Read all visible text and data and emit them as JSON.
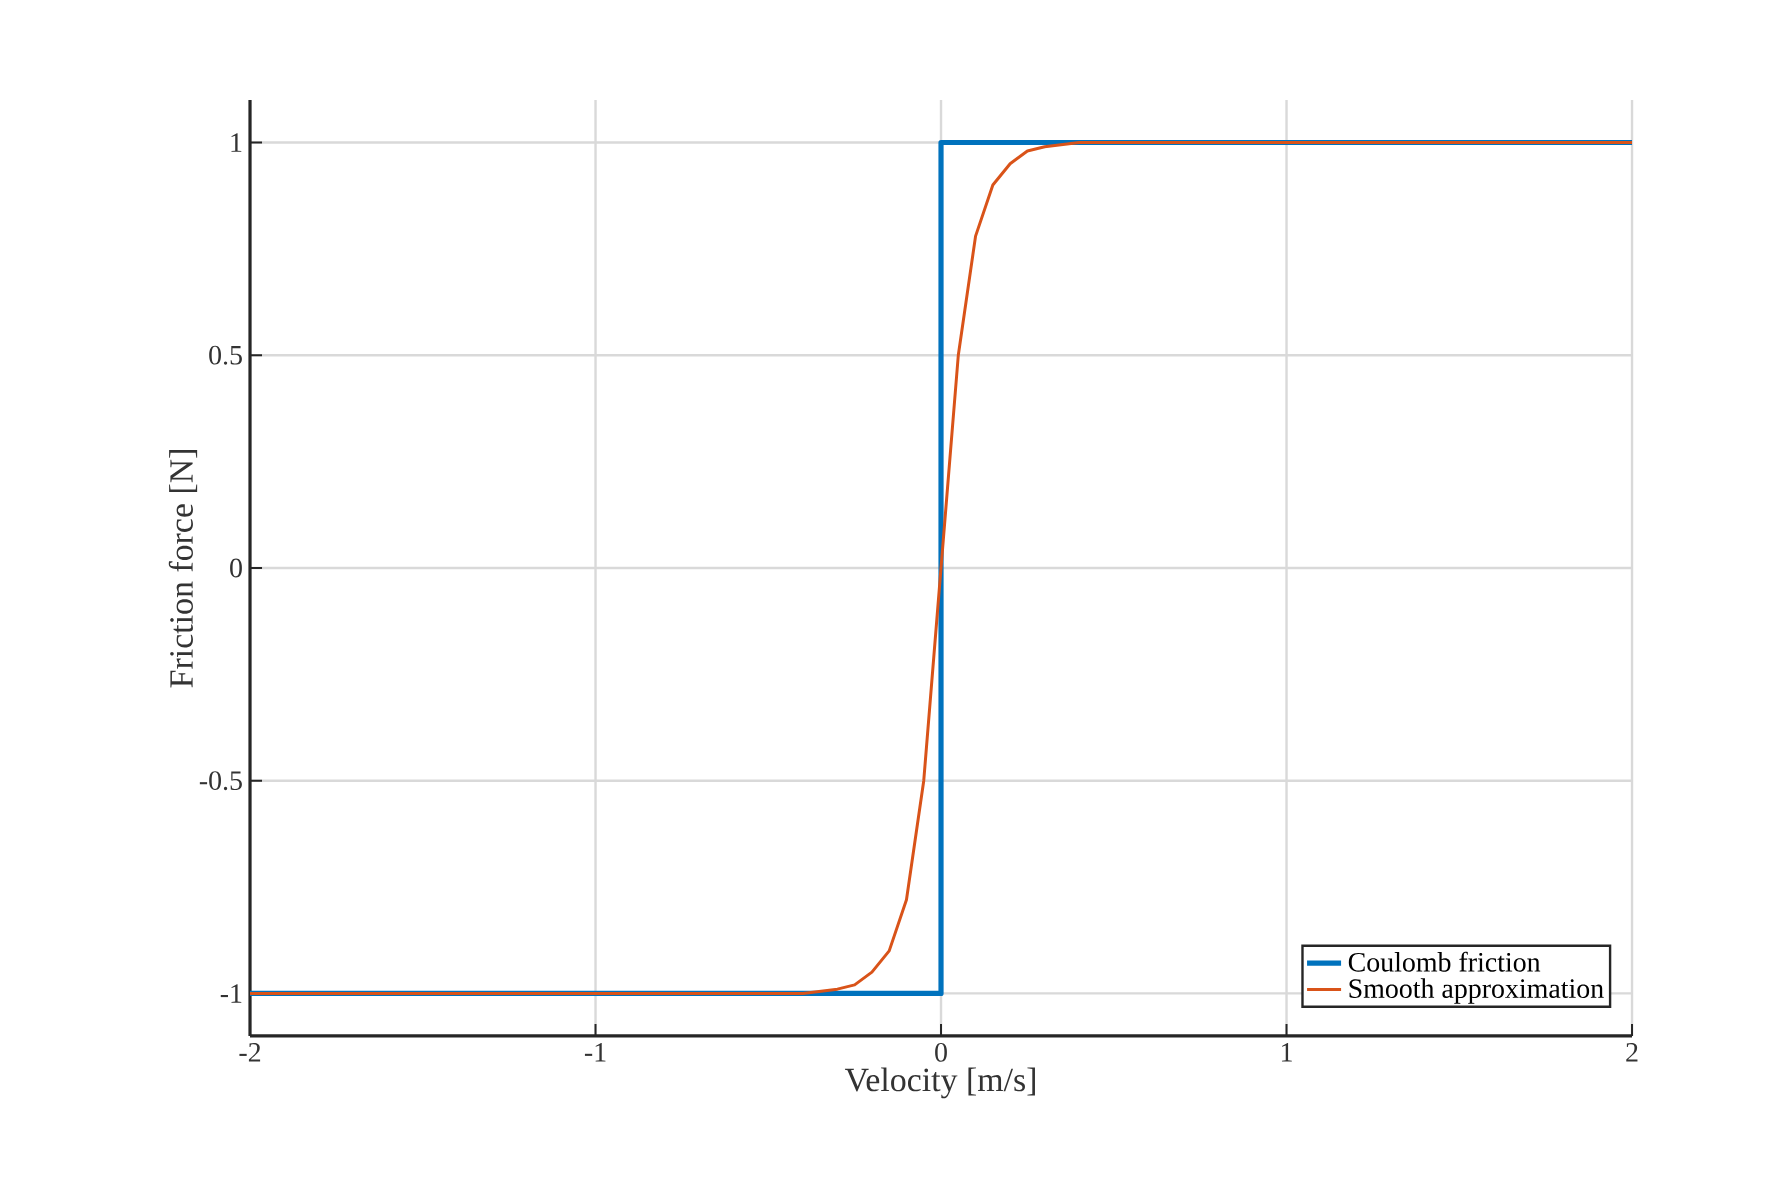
{
  "chart_data": {
    "type": "line",
    "xlabel": "Velocity [m/s]",
    "ylabel": "Friction force [N]",
    "xlim": [
      -2,
      2
    ],
    "ylim": [
      -1.1,
      1.1
    ],
    "xticks": [
      -2,
      -1,
      0,
      1,
      2
    ],
    "yticks": [
      -1,
      -0.5,
      0,
      0.5,
      1
    ],
    "grid": true,
    "legend": "bottom right",
    "marker": "none",
    "line_style": "solid",
    "series": [
      {
        "name": "Coulomb friction",
        "color": "#0072bd",
        "x": [
          -2,
          0,
          0,
          2
        ],
        "values": [
          -1,
          -1,
          1,
          1
        ]
      },
      {
        "name": "Smooth approximation",
        "color": "#d95319",
        "x": [
          -2,
          -0.5,
          -0.4,
          -0.3,
          -0.25,
          -0.2,
          -0.15,
          -0.1,
          -0.05,
          0,
          0.05,
          0.1,
          0.15,
          0.2,
          0.25,
          0.3,
          0.4,
          0.5,
          2
        ],
        "values": [
          -1,
          -1,
          -1,
          -0.99,
          -0.98,
          -0.95,
          -0.9,
          -0.78,
          -0.5,
          0,
          0.5,
          0.78,
          0.9,
          0.95,
          0.98,
          0.99,
          1,
          1,
          1
        ]
      }
    ]
  }
}
